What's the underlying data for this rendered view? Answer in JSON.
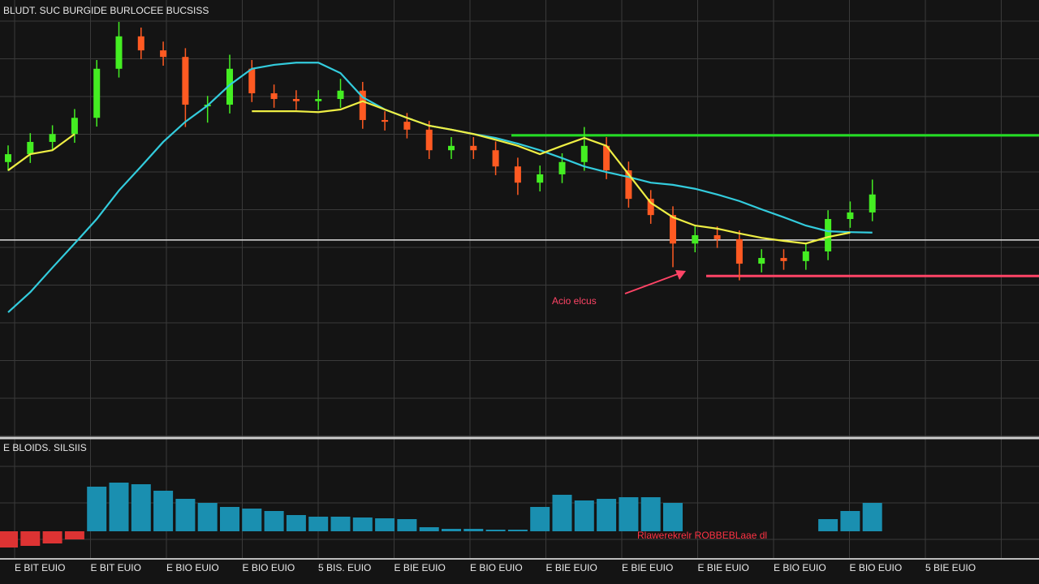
{
  "chart_data": {
    "type": "candlestick",
    "title": "BLUDT. SUC BURGIDE BURLOCEE BUCSISS",
    "ylim": [
      0,
      100
    ],
    "open": [
      63.0,
      64.8,
      67.6,
      69.4,
      73.1,
      84.3,
      91.7,
      88.5,
      87.0,
      76.1,
      76.1,
      84.3,
      78.7,
      77.4,
      76.9,
      77.4,
      79.3,
      72.6,
      72.2,
      70.4,
      65.7,
      66.7,
      65.7,
      62.0,
      58.3,
      60.2,
      63.0,
      66.7,
      61.1,
      54.6,
      50.9,
      44.4,
      46.3,
      45.4,
      39.8,
      41.1,
      40.4,
      42.6,
      50.0,
      51.5
    ],
    "high": [
      66.8,
      69.6,
      71.4,
      75.1,
      86.3,
      95.0,
      93.7,
      90.5,
      89.0,
      78.1,
      87.5,
      86.3,
      80.7,
      79.4,
      79.4,
      82.0,
      81.3,
      74.6,
      74.2,
      72.4,
      68.7,
      68.7,
      67.7,
      64.0,
      62.2,
      65.0,
      71.0,
      68.7,
      63.1,
      56.6,
      52.9,
      48.3,
      48.3,
      47.4,
      43.1,
      43.1,
      44.6,
      52.0,
      54.0,
      59.0
    ],
    "low": [
      61.0,
      62.8,
      65.6,
      67.4,
      71.1,
      82.3,
      86.5,
      85.0,
      71.0,
      72.0,
      74.1,
      76.7,
      75.4,
      74.9,
      74.9,
      75.4,
      70.6,
      70.2,
      68.4,
      63.7,
      63.7,
      63.7,
      60.0,
      55.5,
      56.3,
      58.2,
      61.0,
      59.1,
      52.6,
      48.9,
      39.0,
      42.4,
      43.4,
      36.0,
      37.8,
      38.4,
      38.4,
      40.6,
      48.0,
      49.5
    ],
    "close": [
      64.8,
      67.6,
      69.4,
      73.1,
      84.3,
      91.7,
      88.5,
      87.0,
      76.1,
      76.1,
      84.3,
      78.7,
      77.4,
      76.9,
      77.4,
      79.3,
      72.6,
      72.2,
      70.4,
      65.7,
      66.7,
      65.7,
      62.0,
      58.3,
      60.2,
      63.0,
      66.7,
      61.1,
      54.6,
      50.9,
      44.4,
      46.3,
      45.4,
      39.8,
      41.1,
      40.4,
      42.6,
      50.0,
      51.5,
      55.6
    ],
    "up_color": "#44ee22",
    "down_color": "#ff5a22",
    "series": [
      {
        "color": "#33ccdd",
        "values": [
          28.7,
          33.3,
          38.9,
          44.4,
          50.0,
          56.5,
          62.0,
          67.6,
          72.2,
          75.9,
          80.6,
          84.3,
          85.2,
          85.7,
          85.7,
          83.3,
          77.8,
          75.0,
          73.1,
          71.3,
          70.4,
          69.4,
          68.5,
          67.2,
          65.7,
          63.9,
          62.0,
          60.7,
          59.6,
          58.3,
          57.8,
          56.9,
          55.6,
          54.1,
          52.2,
          50.4,
          48.5,
          47.2,
          47.0,
          46.9
        ]
      },
      {
        "color": "#eeee44",
        "values": [
          61.1,
          64.8,
          65.7,
          69.4,
          null,
          null,
          null,
          null,
          null,
          null,
          null,
          74.6,
          74.6,
          74.6,
          74.4,
          75.0,
          76.9,
          75.0,
          73.1,
          71.3,
          70.4,
          69.4,
          68.1,
          66.7,
          64.8,
          66.7,
          68.5,
          66.7,
          60.2,
          53.7,
          50.4,
          48.5,
          47.8,
          46.7,
          45.7,
          45.0,
          44.4,
          45.9,
          46.9,
          null
        ]
      }
    ],
    "levels": [
      {
        "value": 69.1,
        "color": "#22dd22"
      },
      {
        "value": 45.2,
        "color": "#dddddd"
      },
      {
        "value": 37.0,
        "color": "#ff4466"
      }
    ],
    "annotation": "Acio elcus",
    "indicator": {
      "title": "E BLOIDS. SILSIIS",
      "ylim": [
        -35,
        65
      ],
      "values": [
        -20,
        -18,
        -15,
        -10,
        55,
        60,
        58,
        50,
        40,
        35,
        30,
        28,
        25,
        20,
        18,
        18,
        17,
        16,
        15,
        5,
        3,
        3,
        2,
        2,
        30,
        45,
        38,
        40,
        42,
        42,
        35,
        0,
        0,
        0,
        0,
        0,
        0,
        15,
        25,
        35
      ],
      "up_color": "#1a8fb0",
      "down_color": "#dd3333",
      "annotation": "Rlawerekrelr ROBBEBLaae dl"
    },
    "time_labels": [
      "E BIT EUIO",
      "E BIT EUIO",
      "E BIO EUIO",
      "E BIO EUIO",
      "5 BIS. EUIO",
      "E BIE EUIO",
      "E BIO EUIO",
      "E BIE EUIO",
      "E BIE EUIO",
      "E BIE EUIO",
      "E BIO EUIO",
      "E BIO EUIO",
      "5 BIE EUIO"
    ]
  }
}
